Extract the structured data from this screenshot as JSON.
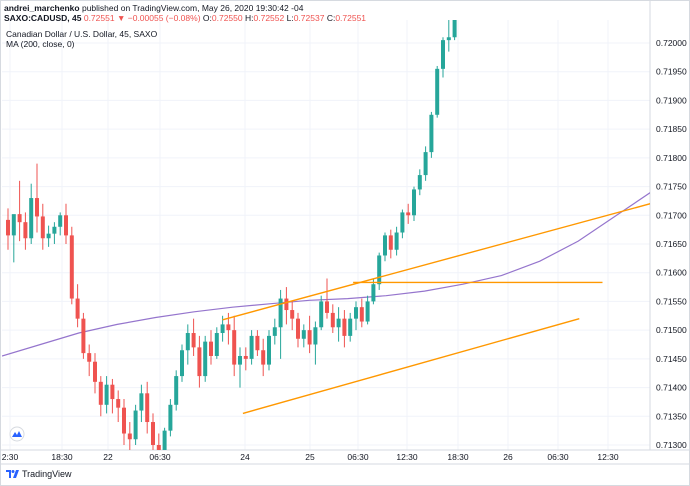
{
  "publisher": {
    "user": "andrei_marchenko",
    "text": "published on TradingView.com, May 26, 2020 19:30:42 -04"
  },
  "ticker": {
    "symbol_tf": "SAXO:CADUSD, 45",
    "last": "0.72551",
    "arrow": "▼",
    "change": "−0.00055 (−0.08%)",
    "o_label": "O:",
    "o": "0.72550",
    "h_label": "H:",
    "h": "0.72552",
    "l_label": "L:",
    "l": "0.72537",
    "c_label": "C:",
    "c": "0.72551"
  },
  "legend": {
    "title": "Canadian Dollar / U.S. Dollar, 45, SAXO",
    "indicator": "MA (200, close, 0)"
  },
  "brand": {
    "name": "TradingView"
  },
  "colors": {
    "up": "#26a69a",
    "down": "#ef5350",
    "ma": "#9575cd",
    "channel": "#ff9800",
    "grid": "#f0f3fa",
    "axis_text": "#131722"
  },
  "chart_data": {
    "type": "candlestick",
    "symbol": "CADUSD",
    "timeframe": "45",
    "y_axis": {
      "ticks": [
        "0.71300",
        "0.71350",
        "0.71400",
        "0.71450",
        "0.71500",
        "0.71550",
        "0.71600",
        "0.71650",
        "0.71700",
        "0.71750",
        "0.71800",
        "0.71850",
        "0.71900",
        "0.71950",
        "0.72000"
      ],
      "range": [
        0.7127,
        0.7226
      ]
    },
    "x_axis": {
      "ticks": [
        "2:30",
        "18:30",
        "22",
        "06:30",
        "24",
        "25",
        "06:30",
        "12:30",
        "18:30",
        "26",
        "06:30",
        "12:30"
      ]
    },
    "candles": [
      {
        "o": 0.71692,
        "h": 0.71712,
        "l": 0.7164,
        "c": 0.71665
      },
      {
        "o": 0.71665,
        "h": 0.717,
        "l": 0.71618,
        "c": 0.71702
      },
      {
        "o": 0.71702,
        "h": 0.7176,
        "l": 0.71655,
        "c": 0.71688
      },
      {
        "o": 0.71688,
        "h": 0.71705,
        "l": 0.7164,
        "c": 0.7166
      },
      {
        "o": 0.7166,
        "h": 0.71755,
        "l": 0.7165,
        "c": 0.7173
      },
      {
        "o": 0.7173,
        "h": 0.7179,
        "l": 0.7167,
        "c": 0.71698
      },
      {
        "o": 0.71698,
        "h": 0.7172,
        "l": 0.7164,
        "c": 0.7166
      },
      {
        "o": 0.7166,
        "h": 0.71682,
        "l": 0.71645,
        "c": 0.71668
      },
      {
        "o": 0.71668,
        "h": 0.71688,
        "l": 0.7165,
        "c": 0.7168
      },
      {
        "o": 0.7168,
        "h": 0.71705,
        "l": 0.71665,
        "c": 0.717
      },
      {
        "o": 0.717,
        "h": 0.7172,
        "l": 0.7165,
        "c": 0.71665
      },
      {
        "o": 0.71665,
        "h": 0.7168,
        "l": 0.71545,
        "c": 0.71555
      },
      {
        "o": 0.71555,
        "h": 0.7158,
        "l": 0.71505,
        "c": 0.7152
      },
      {
        "o": 0.7152,
        "h": 0.7153,
        "l": 0.7145,
        "c": 0.7146
      },
      {
        "o": 0.7146,
        "h": 0.71475,
        "l": 0.7142,
        "c": 0.71445
      },
      {
        "o": 0.71445,
        "h": 0.7146,
        "l": 0.7139,
        "c": 0.7141
      },
      {
        "o": 0.7141,
        "h": 0.7142,
        "l": 0.7135,
        "c": 0.7137
      },
      {
        "o": 0.7137,
        "h": 0.7142,
        "l": 0.71355,
        "c": 0.71405
      },
      {
        "o": 0.71405,
        "h": 0.71415,
        "l": 0.71355,
        "c": 0.7138
      },
      {
        "o": 0.7138,
        "h": 0.71395,
        "l": 0.7134,
        "c": 0.71365
      },
      {
        "o": 0.71365,
        "h": 0.7138,
        "l": 0.713,
        "c": 0.7132
      },
      {
        "o": 0.7132,
        "h": 0.7134,
        "l": 0.7129,
        "c": 0.7131
      },
      {
        "o": 0.7131,
        "h": 0.7137,
        "l": 0.713,
        "c": 0.7136
      },
      {
        "o": 0.7136,
        "h": 0.71405,
        "l": 0.7134,
        "c": 0.7139
      },
      {
        "o": 0.7139,
        "h": 0.7141,
        "l": 0.7132,
        "c": 0.7134
      },
      {
        "o": 0.7134,
        "h": 0.71355,
        "l": 0.7128,
        "c": 0.713
      },
      {
        "o": 0.713,
        "h": 0.7132,
        "l": 0.7125,
        "c": 0.71265
      },
      {
        "o": 0.71265,
        "h": 0.7133,
        "l": 0.7126,
        "c": 0.71325
      },
      {
        "o": 0.71325,
        "h": 0.7138,
        "l": 0.71315,
        "c": 0.7137
      },
      {
        "o": 0.7137,
        "h": 0.7143,
        "l": 0.7136,
        "c": 0.7142
      },
      {
        "o": 0.7142,
        "h": 0.71475,
        "l": 0.7141,
        "c": 0.71465
      },
      {
        "o": 0.71465,
        "h": 0.7151,
        "l": 0.7144,
        "c": 0.71495
      },
      {
        "o": 0.71495,
        "h": 0.7152,
        "l": 0.71455,
        "c": 0.7147
      },
      {
        "o": 0.7147,
        "h": 0.7149,
        "l": 0.714,
        "c": 0.7142
      },
      {
        "o": 0.7142,
        "h": 0.7149,
        "l": 0.7141,
        "c": 0.7148
      },
      {
        "o": 0.7148,
        "h": 0.715,
        "l": 0.7144,
        "c": 0.71455
      },
      {
        "o": 0.71455,
        "h": 0.71505,
        "l": 0.7145,
        "c": 0.71495
      },
      {
        "o": 0.71495,
        "h": 0.71525,
        "l": 0.7148,
        "c": 0.7151
      },
      {
        "o": 0.7151,
        "h": 0.7153,
        "l": 0.71475,
        "c": 0.715
      },
      {
        "o": 0.715,
        "h": 0.71525,
        "l": 0.7142,
        "c": 0.7144
      },
      {
        "o": 0.7144,
        "h": 0.7147,
        "l": 0.714,
        "c": 0.71455
      },
      {
        "o": 0.71455,
        "h": 0.7147,
        "l": 0.7143,
        "c": 0.7145
      },
      {
        "o": 0.7145,
        "h": 0.715,
        "l": 0.7144,
        "c": 0.7149
      },
      {
        "o": 0.7149,
        "h": 0.715,
        "l": 0.71455,
        "c": 0.71465
      },
      {
        "o": 0.71465,
        "h": 0.71485,
        "l": 0.7142,
        "c": 0.7144
      },
      {
        "o": 0.7144,
        "h": 0.715,
        "l": 0.7143,
        "c": 0.7149
      },
      {
        "o": 0.7149,
        "h": 0.7152,
        "l": 0.71475,
        "c": 0.71505
      },
      {
        "o": 0.71505,
        "h": 0.7157,
        "l": 0.7145,
        "c": 0.71555
      },
      {
        "o": 0.71555,
        "h": 0.71575,
        "l": 0.7151,
        "c": 0.71535
      },
      {
        "o": 0.71535,
        "h": 0.7155,
        "l": 0.715,
        "c": 0.7152
      },
      {
        "o": 0.7152,
        "h": 0.7153,
        "l": 0.7147,
        "c": 0.71485
      },
      {
        "o": 0.71485,
        "h": 0.7151,
        "l": 0.7147,
        "c": 0.715
      },
      {
        "o": 0.715,
        "h": 0.71525,
        "l": 0.7146,
        "c": 0.71475
      },
      {
        "o": 0.71475,
        "h": 0.71515,
        "l": 0.7144,
        "c": 0.71505
      },
      {
        "o": 0.71505,
        "h": 0.7156,
        "l": 0.715,
        "c": 0.7155
      },
      {
        "o": 0.7155,
        "h": 0.7159,
        "l": 0.7152,
        "c": 0.7153
      },
      {
        "o": 0.7153,
        "h": 0.71545,
        "l": 0.71495,
        "c": 0.71505
      },
      {
        "o": 0.71505,
        "h": 0.7154,
        "l": 0.7148,
        "c": 0.7152
      },
      {
        "o": 0.7152,
        "h": 0.71535,
        "l": 0.7147,
        "c": 0.7149
      },
      {
        "o": 0.7149,
        "h": 0.7153,
        "l": 0.7148,
        "c": 0.7152
      },
      {
        "o": 0.7152,
        "h": 0.7155,
        "l": 0.715,
        "c": 0.7154
      },
      {
        "o": 0.7154,
        "h": 0.71555,
        "l": 0.71505,
        "c": 0.71515
      },
      {
        "o": 0.71515,
        "h": 0.7156,
        "l": 0.7151,
        "c": 0.7155
      },
      {
        "o": 0.7155,
        "h": 0.7159,
        "l": 0.71545,
        "c": 0.7158
      },
      {
        "o": 0.7158,
        "h": 0.71635,
        "l": 0.7157,
        "c": 0.7163
      },
      {
        "o": 0.7163,
        "h": 0.7167,
        "l": 0.7162,
        "c": 0.71665
      },
      {
        "o": 0.71665,
        "h": 0.71675,
        "l": 0.71625,
        "c": 0.7164
      },
      {
        "o": 0.7164,
        "h": 0.7168,
        "l": 0.7163,
        "c": 0.7167
      },
      {
        "o": 0.7167,
        "h": 0.7171,
        "l": 0.7166,
        "c": 0.71705
      },
      {
        "o": 0.71705,
        "h": 0.7172,
        "l": 0.71685,
        "c": 0.717
      },
      {
        "o": 0.717,
        "h": 0.7175,
        "l": 0.7169,
        "c": 0.71745
      },
      {
        "o": 0.71745,
        "h": 0.7178,
        "l": 0.71735,
        "c": 0.7177
      },
      {
        "o": 0.7177,
        "h": 0.7182,
        "l": 0.7176,
        "c": 0.7181
      },
      {
        "o": 0.7181,
        "h": 0.7188,
        "l": 0.718,
        "c": 0.71875
      },
      {
        "o": 0.71875,
        "h": 0.7196,
        "l": 0.7187,
        "c": 0.71955
      },
      {
        "o": 0.71955,
        "h": 0.7201,
        "l": 0.7194,
        "c": 0.72005
      },
      {
        "o": 0.72005,
        "h": 0.7204,
        "l": 0.71985,
        "c": 0.7201
      },
      {
        "o": 0.7201,
        "h": 0.7206,
        "l": 0.72005,
        "c": 0.7205
      }
    ],
    "ma200": [
      0.71455,
      0.71475,
      0.71495,
      0.7151,
      0.71522,
      0.71532,
      0.7154,
      0.71546,
      0.71552,
      0.71555,
      0.7156,
      0.71568,
      0.7158,
      0.71595,
      0.7162,
      0.71655,
      0.717,
      0.71745
    ],
    "overlays": [
      {
        "name": "channel-upper",
        "type": "trendline",
        "from": {
          "i": 37.0,
          "price": 0.71518
        },
        "to": {
          "i": 112.5,
          "price": 0.71725
        }
      },
      {
        "name": "channel-lower",
        "type": "trendline",
        "from": {
          "i": 40.5,
          "price": 0.71355
        },
        "to": {
          "i": 98.5,
          "price": 0.7152
        }
      },
      {
        "name": "horizontal-level",
        "type": "hline",
        "from_i": 59.5,
        "to_i": 102.5,
        "price": 0.71583
      }
    ]
  }
}
